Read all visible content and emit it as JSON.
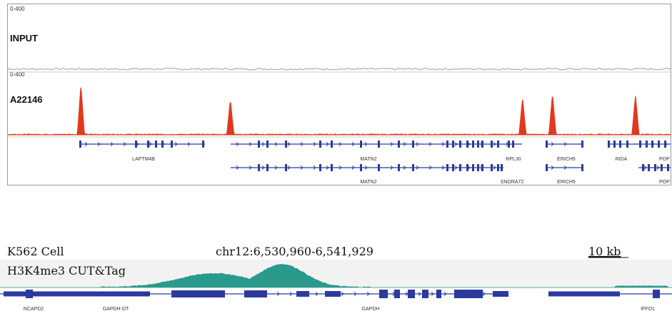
{
  "panel_a": {
    "tracks": [
      {
        "range_label": "0-400",
        "name": "INPUT"
      },
      {
        "range_label": "0-400",
        "name": "A22146"
      }
    ],
    "gene_labels_row1": [
      "LAPTM4B",
      "MATN2",
      "RPL30",
      "ERICH5",
      "RIDA",
      "POP"
    ],
    "gene_labels_row2": [
      "MATN2",
      "SNORA72",
      "ERICH5",
      "POP"
    ]
  },
  "panel_b": {
    "cell_label": "K562 Cell",
    "locus": "chr12:6,530,960-6,541,929",
    "scale_label": "10 kb",
    "track_label": "H3K4me3 CUT&Tag",
    "gene_labels": [
      "NCAPD2",
      "GAPDH-DT",
      "GAPDH",
      "IFFO1"
    ]
  },
  "colors": {
    "input_signal": "#9e9e9e",
    "a22146_signal": "#e03a1e",
    "cuttag_signal": "#2a9a8c",
    "gene_model": "#2b3a9e"
  },
  "chart_data": [
    {
      "type": "area",
      "title": "",
      "ylim": [
        0,
        400
      ],
      "series": [
        {
          "name": "INPUT",
          "peaks": []
        },
        {
          "name": "A22146",
          "peaks": [
            {
              "x": 0.11,
              "value": 340
            },
            {
              "x": 0.335,
              "value": 240
            },
            {
              "x": 0.775,
              "value": 250
            },
            {
              "x": 0.82,
              "value": 280
            },
            {
              "x": 0.945,
              "value": 270
            }
          ]
        }
      ]
    },
    {
      "type": "area",
      "title": "",
      "x_range": [
        "6,530,960",
        "6,541,929"
      ],
      "series": [
        {
          "name": "H3K4me3 CUT&Tag",
          "peaks": [
            {
              "x": 0.32,
              "value": 0.6
            },
            {
              "x": 0.42,
              "value": 1.0
            }
          ]
        }
      ]
    }
  ]
}
